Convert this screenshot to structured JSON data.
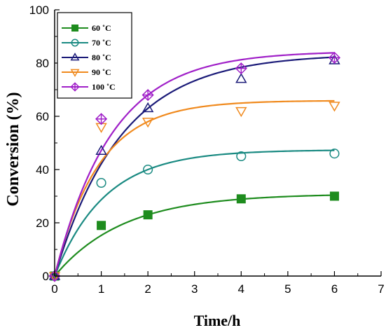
{
  "chart_data": {
    "type": "scatter",
    "xlabel": "Time/h",
    "ylabel": "Conversion (%)",
    "xlim": [
      0,
      7
    ],
    "ylim": [
      0,
      100
    ],
    "xticks": [
      0,
      1,
      2,
      3,
      4,
      5,
      6,
      7
    ],
    "yticks": [
      0,
      20,
      40,
      60,
      80,
      100
    ],
    "grid": false,
    "legend_position": "top-left",
    "x": [
      0,
      1,
      2,
      4,
      6
    ],
    "series": [
      {
        "name": "60 ˚C",
        "marker": "filled-square",
        "color": "#1e8c1e",
        "values": [
          0,
          19,
          23,
          29,
          30
        ]
      },
      {
        "name": "70 ˚C",
        "marker": "circle",
        "color": "#1a8a82",
        "values": [
          0,
          35,
          40,
          45,
          46
        ]
      },
      {
        "name": "80 ˚C",
        "marker": "triangle-up",
        "color": "#1a1a78",
        "values": [
          0,
          47,
          63,
          74,
          81
        ]
      },
      {
        "name": "90 ˚C",
        "marker": "triangle-down",
        "color": "#f08a1e",
        "values": [
          0,
          56,
          58,
          62,
          64
        ]
      },
      {
        "name": "100 ˚C",
        "marker": "diamond-cross",
        "color": "#a020c8",
        "values": [
          0,
          59,
          68,
          78,
          82
        ]
      }
    ]
  }
}
